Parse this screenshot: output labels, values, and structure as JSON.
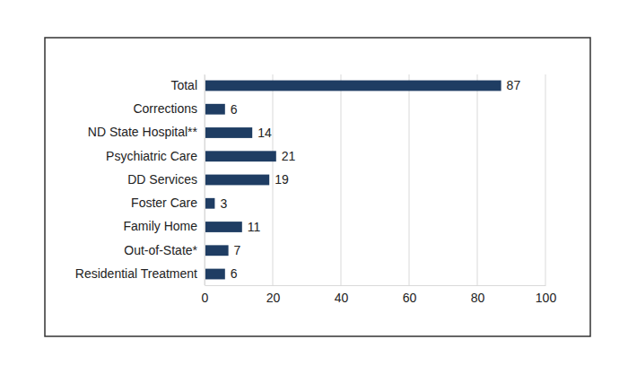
{
  "chart_data": {
    "type": "bar",
    "orientation": "horizontal",
    "categories": [
      "Total",
      "Corrections",
      "ND State Hospital**",
      "Psychiatric Care",
      "DD Services",
      "Foster Care",
      "Family Home",
      "Out-of-State*",
      "Residential Treatment"
    ],
    "values": [
      87,
      6,
      14,
      21,
      19,
      3,
      11,
      7,
      6
    ],
    "color": "#1f3d63",
    "xlim": [
      0,
      100
    ],
    "xticks": [
      0,
      20,
      40,
      60,
      80,
      100
    ],
    "grid": true,
    "data_labels": true
  }
}
